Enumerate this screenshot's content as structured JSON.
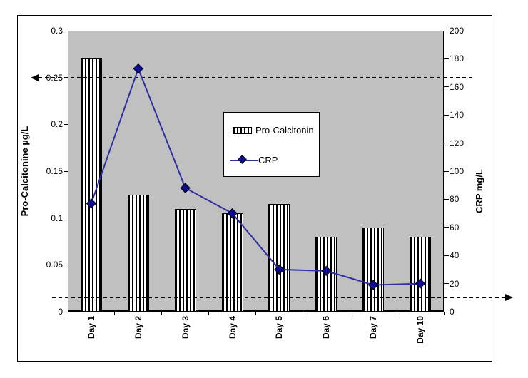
{
  "chart_data": {
    "type": "bar",
    "subtype": "combo-bar-line-dual-axis",
    "categories": [
      "Day 1",
      "Day 2",
      "Day 3",
      "Day 4",
      "Day 5",
      "Day 6",
      "Day 7",
      "Day 10"
    ],
    "series": [
      {
        "name": "Pro-Calcitonin",
        "type": "bar",
        "axis": "left",
        "values": [
          0.27,
          0.125,
          0.11,
          0.105,
          0.115,
          0.08,
          0.09,
          0.08
        ]
      },
      {
        "name": "CRP",
        "type": "line",
        "axis": "right",
        "values": [
          77,
          173,
          88,
          70,
          30,
          29,
          19,
          20
        ]
      }
    ],
    "left_axis": {
      "label": "Pro-Calcitonine µg/L",
      "min": 0,
      "max": 0.3,
      "step": 0.05,
      "tick_labels": [
        "0",
        "0.05",
        "0.1",
        "0.15",
        "0.2",
        "0.25",
        "0.3"
      ]
    },
    "right_axis": {
      "label": "CRP mg/L",
      "min": 0,
      "max": 200,
      "step": 20,
      "tick_labels": [
        "0",
        "20",
        "40",
        "60",
        "80",
        "100",
        "120",
        "140",
        "160",
        "180",
        "200"
      ]
    },
    "reference_lines": [
      {
        "axis": "left",
        "value": 0.25,
        "style": "dashed",
        "arrow": "left"
      },
      {
        "axis": "right",
        "value": 10,
        "style": "dashed",
        "arrow": "right"
      }
    ],
    "legend": {
      "position": "center",
      "items": [
        {
          "label": "Pro-Calcitonin",
          "swatch": "striped-bar"
        },
        {
          "label": "CRP",
          "swatch": "line-diamond"
        }
      ]
    },
    "grid": false,
    "colors": {
      "plot_bg": "#c0c0c0",
      "line": "#2f2fa2",
      "marker": "#0d0d96",
      "bar_fill": "#ffffff",
      "bar_stripe": "#000000",
      "text": "#000000"
    }
  }
}
